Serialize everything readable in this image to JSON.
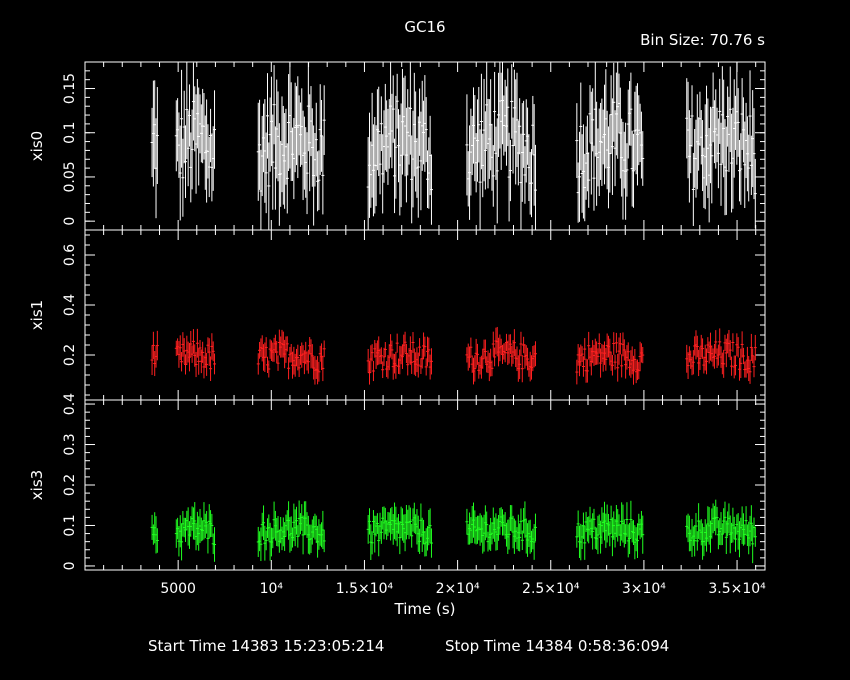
{
  "chart_data": {
    "type": "scatter",
    "title": "GC16",
    "bin_size_label": "Bin Size: 70.76 s",
    "xlabel": "Time (s)",
    "xlim": [
      0,
      36500
    ],
    "x_ticks": [
      {
        "value": 5000,
        "label": "5000"
      },
      {
        "value": 10000,
        "label": "10⁴"
      },
      {
        "value": 15000,
        "label": "1.5×10⁴"
      },
      {
        "value": 20000,
        "label": "2×10⁴"
      },
      {
        "value": 25000,
        "label": "2.5×10⁴"
      },
      {
        "value": 30000,
        "label": "3×10⁴"
      },
      {
        "value": 35000,
        "label": "3.5×10⁴"
      }
    ],
    "start_time_label": "Start Time 14383 15:23:05:214",
    "stop_time_label": "Stop Time 14384  0:58:36:094",
    "segments": [
      [
        3600,
        3900
      ],
      [
        4900,
        7000
      ],
      [
        9300,
        12900
      ],
      [
        15200,
        18600
      ],
      [
        20500,
        24200
      ],
      [
        26400,
        30000
      ],
      [
        32300,
        36000
      ]
    ],
    "panels": [
      {
        "name": "xis0",
        "color": "#ffffff",
        "ylim": [
          -0.01,
          0.18
        ],
        "yticks": [
          {
            "value": 0,
            "label": "0"
          },
          {
            "value": 0.05,
            "label": "0.05"
          },
          {
            "value": 0.1,
            "label": "0.1"
          },
          {
            "value": 0.15,
            "label": "0.15"
          }
        ],
        "mean": 0.075,
        "spread": 0.045,
        "err": 0.05
      },
      {
        "name": "xis1",
        "color": "#ff2020",
        "ylim": [
          0.02,
          0.7
        ],
        "yticks": [
          {
            "value": 0.2,
            "label": "0.2"
          },
          {
            "value": 0.4,
            "label": "0.4"
          },
          {
            "value": 0.6,
            "label": "0.6"
          }
        ],
        "mean": 0.18,
        "spread": 0.055,
        "err": 0.05
      },
      {
        "name": "xis3",
        "color": "#20ff20",
        "ylim": [
          -0.01,
          0.41
        ],
        "yticks": [
          {
            "value": 0,
            "label": "0"
          },
          {
            "value": 0.1,
            "label": "0.1"
          },
          {
            "value": 0.2,
            "label": "0.2"
          },
          {
            "value": 0.3,
            "label": "0.3"
          },
          {
            "value": 0.4,
            "label": "0.4"
          }
        ],
        "mean": 0.08,
        "spread": 0.03,
        "err": 0.04
      }
    ]
  }
}
